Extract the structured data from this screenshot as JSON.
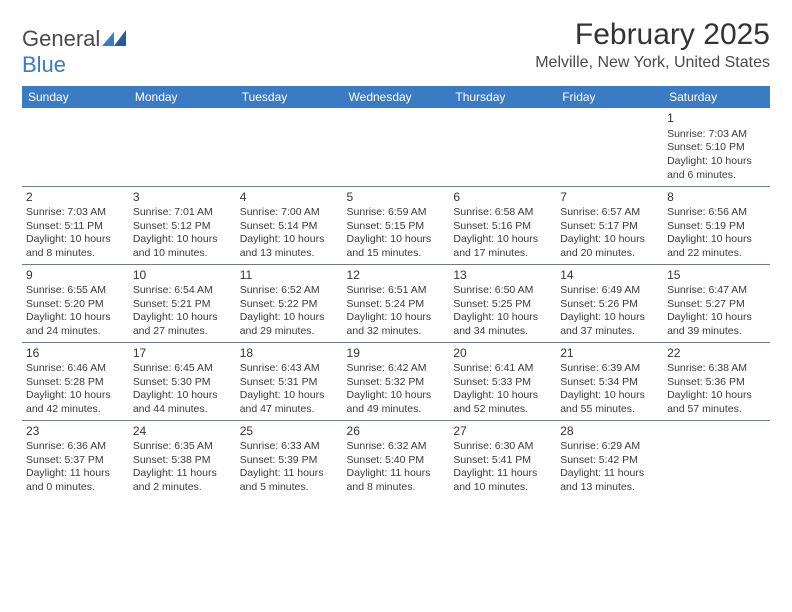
{
  "logo": {
    "word1": "General",
    "word2": "Blue"
  },
  "title": "February 2025",
  "location": "Melville, New York, United States",
  "colors": {
    "header_bg": "#3b7bc4",
    "header_text": "#ffffff",
    "divider": "#6b7a8f",
    "text": "#3a3a3a",
    "logo_gray": "#4a4a4a",
    "logo_blue": "#3b7bc4"
  },
  "day_headers": [
    "Sunday",
    "Monday",
    "Tuesday",
    "Wednesday",
    "Thursday",
    "Friday",
    "Saturday"
  ],
  "weeks": [
    [
      null,
      null,
      null,
      null,
      null,
      null,
      {
        "n": "1",
        "sunrise": "7:03 AM",
        "sunset": "5:10 PM",
        "dl_h": "10",
        "dl_m": "6"
      }
    ],
    [
      {
        "n": "2",
        "sunrise": "7:03 AM",
        "sunset": "5:11 PM",
        "dl_h": "10",
        "dl_m": "8"
      },
      {
        "n": "3",
        "sunrise": "7:01 AM",
        "sunset": "5:12 PM",
        "dl_h": "10",
        "dl_m": "10"
      },
      {
        "n": "4",
        "sunrise": "7:00 AM",
        "sunset": "5:14 PM",
        "dl_h": "10",
        "dl_m": "13"
      },
      {
        "n": "5",
        "sunrise": "6:59 AM",
        "sunset": "5:15 PM",
        "dl_h": "10",
        "dl_m": "15"
      },
      {
        "n": "6",
        "sunrise": "6:58 AM",
        "sunset": "5:16 PM",
        "dl_h": "10",
        "dl_m": "17"
      },
      {
        "n": "7",
        "sunrise": "6:57 AM",
        "sunset": "5:17 PM",
        "dl_h": "10",
        "dl_m": "20"
      },
      {
        "n": "8",
        "sunrise": "6:56 AM",
        "sunset": "5:19 PM",
        "dl_h": "10",
        "dl_m": "22"
      }
    ],
    [
      {
        "n": "9",
        "sunrise": "6:55 AM",
        "sunset": "5:20 PM",
        "dl_h": "10",
        "dl_m": "24"
      },
      {
        "n": "10",
        "sunrise": "6:54 AM",
        "sunset": "5:21 PM",
        "dl_h": "10",
        "dl_m": "27"
      },
      {
        "n": "11",
        "sunrise": "6:52 AM",
        "sunset": "5:22 PM",
        "dl_h": "10",
        "dl_m": "29"
      },
      {
        "n": "12",
        "sunrise": "6:51 AM",
        "sunset": "5:24 PM",
        "dl_h": "10",
        "dl_m": "32"
      },
      {
        "n": "13",
        "sunrise": "6:50 AM",
        "sunset": "5:25 PM",
        "dl_h": "10",
        "dl_m": "34"
      },
      {
        "n": "14",
        "sunrise": "6:49 AM",
        "sunset": "5:26 PM",
        "dl_h": "10",
        "dl_m": "37"
      },
      {
        "n": "15",
        "sunrise": "6:47 AM",
        "sunset": "5:27 PM",
        "dl_h": "10",
        "dl_m": "39"
      }
    ],
    [
      {
        "n": "16",
        "sunrise": "6:46 AM",
        "sunset": "5:28 PM",
        "dl_h": "10",
        "dl_m": "42"
      },
      {
        "n": "17",
        "sunrise": "6:45 AM",
        "sunset": "5:30 PM",
        "dl_h": "10",
        "dl_m": "44"
      },
      {
        "n": "18",
        "sunrise": "6:43 AM",
        "sunset": "5:31 PM",
        "dl_h": "10",
        "dl_m": "47"
      },
      {
        "n": "19",
        "sunrise": "6:42 AM",
        "sunset": "5:32 PM",
        "dl_h": "10",
        "dl_m": "49"
      },
      {
        "n": "20",
        "sunrise": "6:41 AM",
        "sunset": "5:33 PM",
        "dl_h": "10",
        "dl_m": "52"
      },
      {
        "n": "21",
        "sunrise": "6:39 AM",
        "sunset": "5:34 PM",
        "dl_h": "10",
        "dl_m": "55"
      },
      {
        "n": "22",
        "sunrise": "6:38 AM",
        "sunset": "5:36 PM",
        "dl_h": "10",
        "dl_m": "57"
      }
    ],
    [
      {
        "n": "23",
        "sunrise": "6:36 AM",
        "sunset": "5:37 PM",
        "dl_h": "11",
        "dl_m": "0"
      },
      {
        "n": "24",
        "sunrise": "6:35 AM",
        "sunset": "5:38 PM",
        "dl_h": "11",
        "dl_m": "2"
      },
      {
        "n": "25",
        "sunrise": "6:33 AM",
        "sunset": "5:39 PM",
        "dl_h": "11",
        "dl_m": "5"
      },
      {
        "n": "26",
        "sunrise": "6:32 AM",
        "sunset": "5:40 PM",
        "dl_h": "11",
        "dl_m": "8"
      },
      {
        "n": "27",
        "sunrise": "6:30 AM",
        "sunset": "5:41 PM",
        "dl_h": "11",
        "dl_m": "10"
      },
      {
        "n": "28",
        "sunrise": "6:29 AM",
        "sunset": "5:42 PM",
        "dl_h": "11",
        "dl_m": "13"
      },
      null
    ]
  ],
  "labels": {
    "sunrise": "Sunrise: ",
    "sunset": "Sunset: ",
    "daylight_prefix": "Daylight: ",
    "hours_word": " hours",
    "and_word": "and ",
    "minutes_word": " minutes."
  }
}
